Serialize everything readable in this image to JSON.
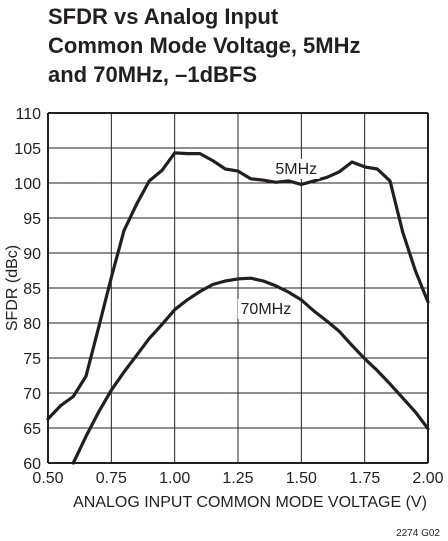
{
  "chart_data": {
    "type": "line",
    "title_lines": [
      "SFDR vs Analog Input",
      "Common Mode Voltage, 5MHz",
      "and 70MHz, –1dBFS"
    ],
    "xlabel": "ANALOG INPUT COMMON MODE VOLTAGE (V)",
    "ylabel": "SFDR (dBc)",
    "xlim": [
      0.5,
      2.0
    ],
    "ylim": [
      60,
      110
    ],
    "x_ticks": [
      0.5,
      0.75,
      1.0,
      1.25,
      1.5,
      1.75,
      2.0
    ],
    "x_tick_labels": [
      "0.50",
      "0.75",
      "1.00",
      "1.25",
      "1.50",
      "1.75",
      "2.00"
    ],
    "y_ticks": [
      60,
      65,
      70,
      75,
      80,
      85,
      90,
      95,
      100,
      105,
      110
    ],
    "y_tick_labels": [
      "60",
      "65",
      "70",
      "75",
      "80",
      "85",
      "90",
      "95",
      "100",
      "105",
      "110"
    ],
    "grid": true,
    "figure_code": "2274 G02",
    "series": [
      {
        "name": "5MHz",
        "x": [
          0.5,
          0.55,
          0.6,
          0.65,
          0.7,
          0.75,
          0.8,
          0.85,
          0.9,
          0.95,
          1.0,
          1.05,
          1.1,
          1.15,
          1.2,
          1.25,
          1.3,
          1.35,
          1.4,
          1.45,
          1.5,
          1.55,
          1.6,
          1.65,
          1.7,
          1.75,
          1.8,
          1.85,
          1.9,
          1.95,
          2.0
        ],
        "y": [
          66.3,
          68.2,
          69.5,
          72.4,
          79.4,
          86.5,
          93.2,
          97.0,
          100.3,
          101.8,
          104.3,
          104.2,
          104.2,
          103.2,
          102.0,
          101.7,
          100.6,
          100.4,
          100.1,
          100.3,
          99.8,
          100.3,
          100.8,
          101.6,
          103.0,
          102.3,
          102.0,
          100.3,
          93.0,
          87.5,
          83.0
        ]
      },
      {
        "name": "70MHz",
        "x": [
          0.6,
          0.65,
          0.7,
          0.75,
          0.8,
          0.85,
          0.9,
          0.95,
          1.0,
          1.05,
          1.1,
          1.15,
          1.2,
          1.25,
          1.3,
          1.35,
          1.4,
          1.45,
          1.5,
          1.55,
          1.6,
          1.65,
          1.7,
          1.75,
          1.8,
          1.85,
          1.9,
          1.95,
          2.0
        ],
        "y": [
          60.0,
          63.8,
          67.3,
          70.4,
          73.0,
          75.4,
          77.8,
          79.8,
          81.9,
          83.3,
          84.5,
          85.5,
          86.0,
          86.3,
          86.4,
          86.0,
          85.3,
          84.4,
          83.3,
          81.7,
          80.3,
          78.8,
          76.8,
          74.9,
          73.2,
          71.3,
          69.3,
          67.3,
          64.9
        ]
      }
    ],
    "series_labels": [
      {
        "text": "5MHz",
        "x": 1.48,
        "y": 101.3
      },
      {
        "text": "70MHz",
        "x": 1.36,
        "y": 81.3
      }
    ]
  }
}
